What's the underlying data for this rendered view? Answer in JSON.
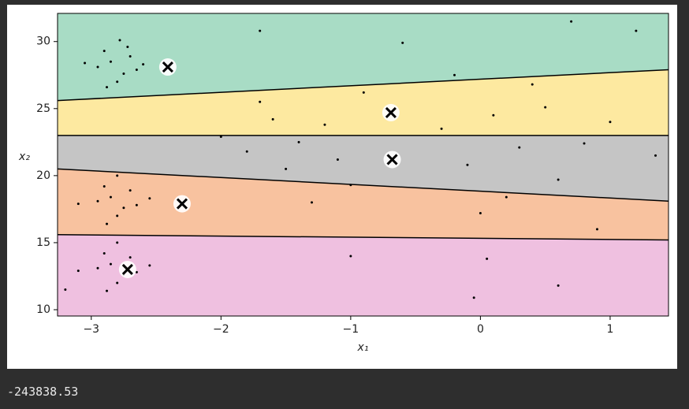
{
  "chart_data": {
    "type": "scatter",
    "xlabel": "x₁",
    "ylabel": "x₂",
    "xlim": [
      -3.26,
      1.45
    ],
    "ylim": [
      9.53,
      32.1
    ],
    "xticks": [
      {
        "value": -3,
        "label": "−3"
      },
      {
        "value": -2,
        "label": "−2"
      },
      {
        "value": -1,
        "label": "−1"
      },
      0,
      1
    ],
    "yticks": [
      10,
      15,
      20,
      25,
      30
    ],
    "region_colors": [
      "#a8dcc5",
      "#fde9a0",
      "#c5c5c5",
      "#f8c29f",
      "#efc0e0"
    ],
    "boundaries": [
      {
        "x": [
          -3.26,
          1.45
        ],
        "y": [
          25.6,
          27.9
        ]
      },
      {
        "x": [
          -3.26,
          1.45
        ],
        "y": [
          23.0,
          23.0
        ]
      },
      {
        "x": [
          -3.26,
          1.45
        ],
        "y": [
          20.5,
          18.1
        ]
      },
      {
        "x": [
          -3.26,
          1.45
        ],
        "y": [
          15.6,
          15.2
        ]
      }
    ],
    "points": {
      "color": "#000000",
      "x": [
        -2.85,
        -2.75,
        -2.9,
        -2.7,
        -2.8,
        -2.95,
        -2.65,
        -2.78,
        -2.88,
        -2.72,
        -3.05,
        -2.6,
        -2.85,
        -2.75,
        -2.9,
        -2.7,
        -2.8,
        -2.95,
        -2.65,
        -2.8,
        -2.88,
        -3.1,
        -2.55,
        -2.85,
        -2.75,
        -2.9,
        -2.7,
        -2.8,
        -2.95,
        -2.65,
        -2.8,
        -2.88,
        -3.1,
        -2.55,
        -3.2,
        -1.6,
        -1.4,
        -1.8,
        -1.2,
        -1.5,
        -1.0,
        -1.3,
        -1.7,
        -0.9,
        -2.0,
        -1.1,
        0.1,
        0.3,
        -0.1,
        0.5,
        0.2,
        0.0,
        0.4,
        0.8,
        -0.3,
        0.6,
        1.0,
        -0.2,
        0.9,
        -0.6,
        0.7,
        -1.7,
        -1.0,
        0.05,
        0.6,
        -0.05,
        1.35,
        1.2
      ],
      "y": [
        28.5,
        27.6,
        29.3,
        28.9,
        27.0,
        28.1,
        27.9,
        30.1,
        26.6,
        29.6,
        28.4,
        28.3,
        18.4,
        17.6,
        19.2,
        18.9,
        17.0,
        18.1,
        17.8,
        20.0,
        16.4,
        17.9,
        18.3,
        13.4,
        12.6,
        14.2,
        13.9,
        12.0,
        13.1,
        12.8,
        15.0,
        11.4,
        12.9,
        13.3,
        11.5,
        24.2,
        22.5,
        21.8,
        23.8,
        20.5,
        19.3,
        18.0,
        25.5,
        26.2,
        22.9,
        21.2,
        24.5,
        22.1,
        20.8,
        25.1,
        18.4,
        17.2,
        26.8,
        22.4,
        23.5,
        19.7,
        24.0,
        27.5,
        16.0,
        29.9,
        31.5,
        30.8,
        14.0,
        13.8,
        11.8,
        10.9,
        21.5,
        30.8
      ]
    },
    "centroids": {
      "x": [
        -2.41,
        -0.69,
        -0.68,
        -2.3,
        -2.72
      ],
      "y": [
        28.1,
        24.7,
        21.2,
        17.9,
        13.0
      ]
    }
  },
  "output_text": "-243838.53"
}
